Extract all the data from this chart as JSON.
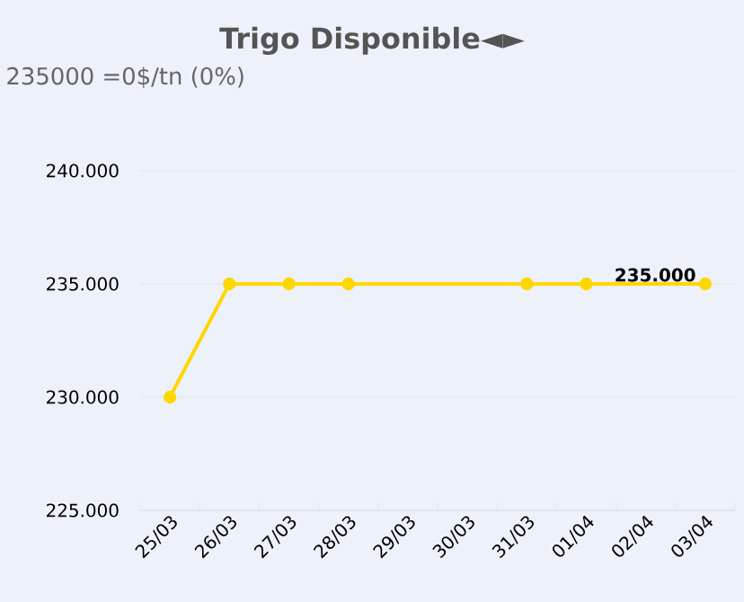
{
  "chart_data": {
    "type": "line",
    "title": "Trigo Disponible◄►",
    "subtitle": "235000 =0$/tn (0%)",
    "categories": [
      "25/03",
      "26/03",
      "27/03",
      "28/03",
      "29/03",
      "30/03",
      "31/03",
      "01/04",
      "02/04",
      "03/04"
    ],
    "series": [
      {
        "color": "#ffd700",
        "values": [
          230000,
          235000,
          235000,
          235000,
          null,
          null,
          235000,
          235000,
          null,
          235000
        ],
        "value_labels": [
          null,
          null,
          null,
          null,
          null,
          null,
          null,
          null,
          null,
          "235.000"
        ]
      }
    ],
    "ylim": [
      225000,
      240000
    ],
    "yticks": [
      {
        "value": 225000,
        "label": "225.000"
      },
      {
        "value": 230000,
        "label": "230.000"
      },
      {
        "value": 235000,
        "label": "235.000"
      },
      {
        "value": 240000,
        "label": "240.000"
      }
    ],
    "grid": "y",
    "marker": "circle",
    "line_style": "solid"
  }
}
